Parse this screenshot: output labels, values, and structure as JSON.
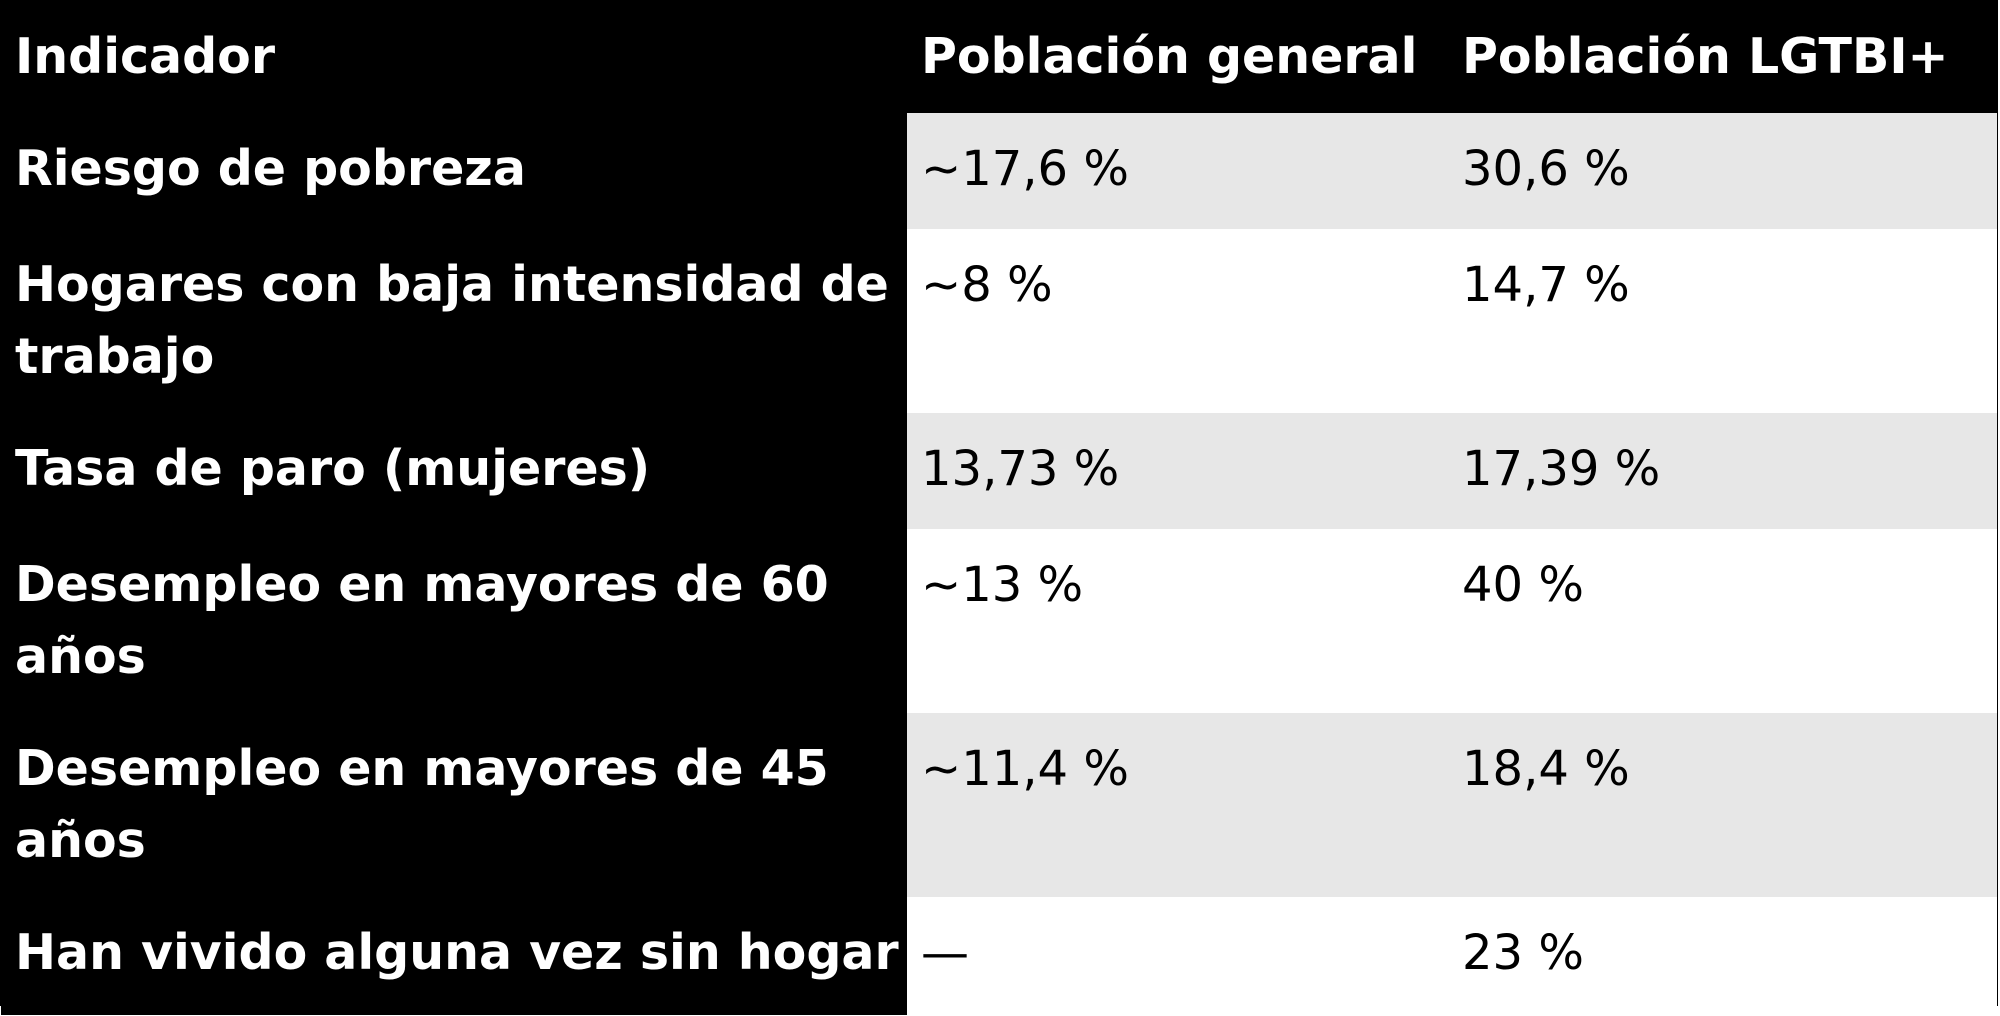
{
  "table": {
    "headers": [
      "Indicador",
      "Población general",
      "Población LGTBI+"
    ],
    "rows": [
      {
        "indicator": "Riesgo de pobreza",
        "general": "~17,6 %",
        "lgtbi": "30,6 %"
      },
      {
        "indicator": "Hogares con baja intensidad de trabajo",
        "general": "~8 %",
        "lgtbi": "14,7 %"
      },
      {
        "indicator": "Tasa de paro (mujeres)",
        "general": "13,73 %",
        "lgtbi": "17,39 %"
      },
      {
        "indicator": "Desempleo en mayores de 60 años",
        "general": "~13 %",
        "lgtbi": "40 %"
      },
      {
        "indicator": "Desempleo en mayores de 45 años",
        "general": "~11,4 %",
        "lgtbi": "18,4 %"
      },
      {
        "indicator": "Han vivido alguna vez sin hogar",
        "general": "—",
        "lgtbi": "23 %"
      }
    ]
  },
  "colors": {
    "header_bg": "#000000",
    "header_text": "#ffffff",
    "row_shade": "#e7e7e7",
    "row_plain": "#ffffff",
    "cell_text": "#000000"
  }
}
